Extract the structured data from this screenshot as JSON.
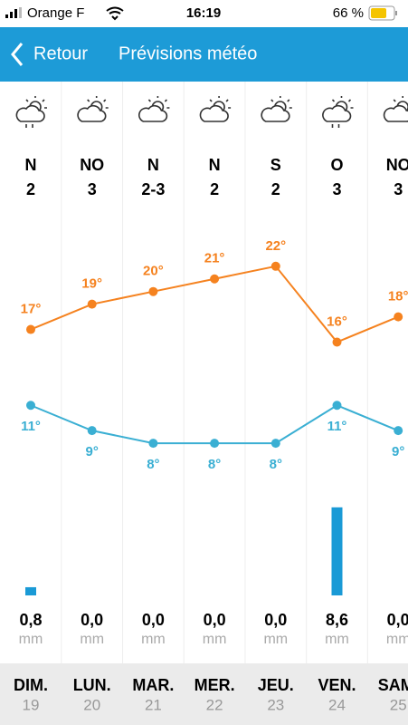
{
  "status_bar": {
    "carrier": "Orange F",
    "time": "16:19",
    "battery": "66 %"
  },
  "header": {
    "back": "Retour",
    "title": "Prévisions météo"
  },
  "days": [
    {
      "wind_dir": "N",
      "wind_force": "2",
      "name": "DIM.",
      "date": "19"
    },
    {
      "wind_dir": "NO",
      "wind_force": "3",
      "name": "LUN.",
      "date": "20"
    },
    {
      "wind_dir": "N",
      "wind_force": "2-3",
      "name": "MAR.",
      "date": "21"
    },
    {
      "wind_dir": "N",
      "wind_force": "2",
      "name": "MER.",
      "date": "22"
    },
    {
      "wind_dir": "S",
      "wind_force": "2",
      "name": "JEU.",
      "date": "23"
    },
    {
      "wind_dir": "O",
      "wind_force": "3",
      "name": "VEN.",
      "date": "24"
    },
    {
      "wind_dir": "NO",
      "wind_force": "3",
      "name": "SAM.",
      "date": "25"
    }
  ],
  "chart_data": [
    {
      "type": "line",
      "ylim": [
        6,
        26
      ],
      "series": [
        {
          "color": "#f5821f",
          "values": [
            17,
            19,
            20,
            21,
            22,
            16,
            18
          ],
          "value_labels": [
            "17°",
            "19°",
            "20°",
            "21°",
            "22°",
            "16°",
            "18°"
          ]
        },
        {
          "color": "#3aafd3",
          "values": [
            11,
            9,
            8,
            8,
            8,
            11,
            9
          ],
          "value_labels": [
            "11°",
            "9°",
            "8°",
            "8°",
            "8°",
            "11°",
            "9°"
          ]
        }
      ]
    },
    {
      "type": "bar",
      "ylim": [
        0,
        10
      ],
      "color": "#1a9ad6",
      "values": [
        0.8,
        0,
        0,
        0,
        0,
        8.6,
        0
      ],
      "value_labels": [
        "0,8",
        "0,0",
        "0,0",
        "0,0",
        "0,0",
        "8,6",
        "0,0"
      ],
      "unit": "mm"
    }
  ]
}
